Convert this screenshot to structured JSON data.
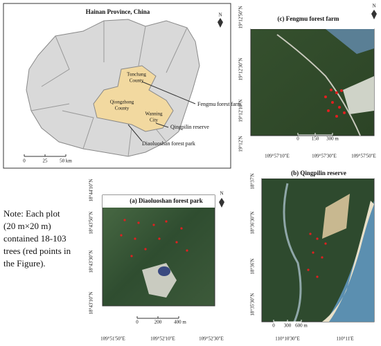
{
  "hainan": {
    "title": "Hainan Province, China",
    "north": "N",
    "scale": [
      "0",
      "25",
      "50 km"
    ],
    "labels": {
      "tunchang": [
        "Tunchang",
        "County"
      ],
      "qiongzhong": [
        "Qiongzhong",
        "County"
      ],
      "wanning": [
        "Wanning",
        "City"
      ],
      "fengmu": "Fengmu forest farm",
      "qingpilin": "Qingpilin reserve",
      "diaoluoshan": "Diaoluoshan forest park"
    }
  },
  "panel_c": {
    "title": "(c) Fengmu forest farm",
    "north": "N",
    "lat": [
      "19°12'50\"N",
      "19°12'30\"N",
      "19°12'10\"N",
      "19°12'N"
    ],
    "lon": [
      "109°57'10\"E",
      "109°57'30\"E",
      "109°57'50\"E"
    ],
    "scale": [
      "0",
      "150",
      "300 m"
    ]
  },
  "panel_b": {
    "title": "(b) Qingpilin reserve",
    "lat": [
      "18°37'N",
      "18°36'30\"N",
      "18°36'N",
      "18°35'30\"N"
    ],
    "lon": [
      "110°10'30\"E",
      "110°11'E"
    ],
    "scale": [
      "0",
      "300",
      "600 m"
    ]
  },
  "panel_a": {
    "title": "(a) Diaoluoshan forest park",
    "north": "N",
    "lat": [
      "18°44'10\"N",
      "18°43'50\"N",
      "18°43'30\"N",
      "18°43'10\"N"
    ],
    "lon": [
      "109°51'50\"E",
      "109°52'10\"E",
      "109°52'30\"E"
    ],
    "scale": [
      "0",
      "200",
      "400 m"
    ]
  },
  "note": [
    "Note: Each plot",
    "(20 m×20 m)",
    "contained 18-103",
    "trees (red points in",
    "the Figure)."
  ]
}
